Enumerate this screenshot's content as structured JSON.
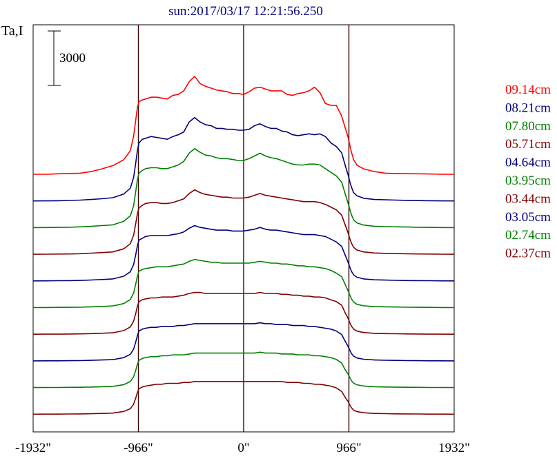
{
  "chart_data": {
    "type": "line",
    "title": "sun:2017/03/17 12:21:56.250",
    "ylabel": "Ta,I",
    "scale_bar_label": "3000",
    "xlim": [
      -1932,
      1932
    ],
    "x_ticks": [
      {
        "value": -1932,
        "label": "-1932\""
      },
      {
        "value": -966,
        "label": "-966\""
      },
      {
        "value": 0,
        "label": "0\""
      },
      {
        "value": 966,
        "label": "966\""
      },
      {
        "value": 1932,
        "label": "1932\""
      }
    ],
    "vertical_lines": [
      -966,
      0,
      966
    ],
    "legend_position": "right",
    "x": [
      -1932,
      -1800,
      -1700,
      -1600,
      -1500,
      -1400,
      -1300,
      -1200,
      -1100,
      -1040,
      -1010,
      -990,
      -975,
      -960,
      -930,
      -900,
      -850,
      -800,
      -750,
      -700,
      -650,
      -600,
      -550,
      -500,
      -450,
      -400,
      -350,
      -300,
      -250,
      -200,
      -150,
      -100,
      -50,
      0,
      50,
      100,
      150,
      200,
      250,
      300,
      350,
      400,
      450,
      500,
      550,
      600,
      650,
      700,
      750,
      800,
      850,
      900,
      930,
      960,
      975,
      990,
      1010,
      1040,
      1100,
      1200,
      1300,
      1400,
      1500,
      1600,
      1700,
      1800,
      1932
    ],
    "series": [
      {
        "name": "09.14cm",
        "color": "#ff0000",
        "baseline": 0,
        "values": [
          0,
          5,
          25,
          40,
          60,
          150,
          300,
          480,
          800,
          1300,
          2100,
          3000,
          3700,
          4000,
          4100,
          4150,
          4250,
          4250,
          4200,
          4150,
          4350,
          4400,
          4600,
          5100,
          5400,
          5000,
          4850,
          4750,
          4650,
          4600,
          4550,
          4450,
          4450,
          4400,
          4550,
          4750,
          4800,
          4700,
          4600,
          4600,
          4600,
          4400,
          4350,
          4450,
          4500,
          4600,
          4800,
          4500,
          3900,
          3800,
          3800,
          3200,
          2600,
          2000,
          1600,
          1200,
          800,
          500,
          300,
          150,
          60,
          40,
          30,
          25,
          15,
          5,
          0
        ]
      },
      {
        "name": "08.21cm",
        "color": "#000080",
        "baseline": 0,
        "values": [
          0,
          5,
          10,
          25,
          45,
          80,
          120,
          180,
          380,
          700,
          1300,
          2100,
          2800,
          3200,
          3400,
          3450,
          3550,
          3500,
          3450,
          3400,
          3550,
          3650,
          3800,
          4350,
          4600,
          4350,
          4200,
          4150,
          4000,
          4000,
          3950,
          3950,
          3900,
          3900,
          3950,
          4150,
          4250,
          4100,
          4000,
          4000,
          3850,
          3800,
          3650,
          3600,
          3650,
          3700,
          3650,
          3700,
          3550,
          3200,
          3000,
          2650,
          2000,
          1400,
          1050,
          750,
          450,
          280,
          150,
          80,
          60,
          45,
          30,
          20,
          10,
          5,
          0
        ]
      },
      {
        "name": "07.80cm",
        "color": "#008000",
        "baseline": 0,
        "values": [
          0,
          5,
          10,
          20,
          40,
          70,
          110,
          150,
          350,
          650,
          1200,
          2000,
          2650,
          3000,
          3150,
          3250,
          3300,
          3300,
          3250,
          3250,
          3350,
          3450,
          3650,
          4100,
          4350,
          4150,
          4000,
          3950,
          3850,
          3800,
          3800,
          3750,
          3700,
          3700,
          3800,
          3950,
          4100,
          3950,
          3850,
          3800,
          3700,
          3600,
          3500,
          3450,
          3450,
          3500,
          3500,
          3450,
          3250,
          3050,
          2850,
          2500,
          1900,
          1300,
          1000,
          700,
          420,
          260,
          140,
          75,
          55,
          40,
          30,
          20,
          10,
          5,
          0
        ]
      },
      {
        "name": "05.71cm",
        "color": "#800000",
        "baseline": 0,
        "values": [
          0,
          5,
          10,
          15,
          30,
          60,
          90,
          130,
          300,
          580,
          1050,
          1700,
          2250,
          2550,
          2700,
          2800,
          2850,
          2850,
          2800,
          2800,
          2850,
          2950,
          3050,
          3350,
          3550,
          3400,
          3300,
          3250,
          3200,
          3150,
          3150,
          3100,
          3100,
          3100,
          3150,
          3250,
          3350,
          3250,
          3200,
          3150,
          3100,
          3050,
          3000,
          2950,
          2900,
          2900,
          2900,
          2850,
          2750,
          2600,
          2450,
          2150,
          1650,
          1150,
          850,
          600,
          380,
          230,
          130,
          70,
          50,
          35,
          25,
          15,
          10,
          5,
          0
        ]
      },
      {
        "name": "04.64cm",
        "color": "#000080",
        "baseline": 0,
        "values": [
          0,
          5,
          10,
          15,
          25,
          50,
          75,
          110,
          260,
          500,
          900,
          1450,
          1950,
          2250,
          2350,
          2450,
          2500,
          2500,
          2500,
          2500,
          2550,
          2600,
          2700,
          2900,
          3050,
          2950,
          2900,
          2850,
          2800,
          2800,
          2800,
          2750,
          2750,
          2750,
          2800,
          2850,
          2950,
          2850,
          2800,
          2800,
          2750,
          2700,
          2650,
          2600,
          2550,
          2550,
          2550,
          2500,
          2450,
          2300,
          2150,
          1900,
          1450,
          1000,
          750,
          520,
          330,
          200,
          110,
          60,
          45,
          30,
          20,
          15,
          10,
          5,
          0
        ]
      },
      {
        "name": "03.95cm",
        "color": "#008000",
        "baseline": 0,
        "values": [
          0,
          5,
          10,
          15,
          20,
          40,
          60,
          90,
          220,
          440,
          800,
          1300,
          1750,
          2000,
          2100,
          2150,
          2200,
          2250,
          2250,
          2250,
          2300,
          2350,
          2400,
          2550,
          2650,
          2600,
          2550,
          2500,
          2500,
          2450,
          2450,
          2450,
          2450,
          2450,
          2450,
          2500,
          2550,
          2500,
          2450,
          2450,
          2400,
          2400,
          2350,
          2300,
          2300,
          2250,
          2250,
          2200,
          2150,
          2050,
          1900,
          1700,
          1300,
          900,
          680,
          470,
          300,
          180,
          100,
          55,
          40,
          30,
          20,
          15,
          10,
          5,
          0
        ]
      },
      {
        "name": "03.44cm",
        "color": "#800000",
        "baseline": 0,
        "values": [
          0,
          5,
          5,
          10,
          20,
          35,
          55,
          80,
          200,
          400,
          720,
          1150,
          1550,
          1800,
          1900,
          1950,
          2000,
          2000,
          2050,
          2050,
          2050,
          2100,
          2150,
          2250,
          2300,
          2300,
          2250,
          2250,
          2250,
          2250,
          2250,
          2250,
          2250,
          2250,
          2250,
          2250,
          2300,
          2250,
          2250,
          2250,
          2200,
          2200,
          2150,
          2150,
          2100,
          2100,
          2050,
          2050,
          2000,
          1900,
          1800,
          1600,
          1200,
          850,
          630,
          440,
          280,
          170,
          95,
          50,
          35,
          25,
          15,
          10,
          5,
          5,
          0
        ]
      },
      {
        "name": "03.05cm",
        "color": "#000080",
        "baseline": 0,
        "values": [
          0,
          5,
          5,
          10,
          15,
          30,
          50,
          70,
          180,
          360,
          650,
          1050,
          1400,
          1650,
          1750,
          1800,
          1850,
          1850,
          1900,
          1900,
          1900,
          1950,
          1950,
          2000,
          2050,
          2050,
          2050,
          2050,
          2050,
          2050,
          2050,
          2050,
          2050,
          2050,
          2050,
          2050,
          2100,
          2050,
          2050,
          2000,
          2000,
          2000,
          1950,
          1950,
          1950,
          1900,
          1900,
          1850,
          1800,
          1750,
          1650,
          1450,
          1100,
          780,
          580,
          400,
          260,
          160,
          90,
          50,
          35,
          25,
          15,
          10,
          5,
          5,
          0
        ]
      },
      {
        "name": "02.74cm",
        "color": "#008000",
        "baseline": 0,
        "values": [
          0,
          5,
          5,
          10,
          15,
          25,
          45,
          65,
          160,
          330,
          600,
          950,
          1300,
          1500,
          1600,
          1650,
          1700,
          1700,
          1750,
          1750,
          1800,
          1800,
          1800,
          1850,
          1900,
          1900,
          1900,
          1900,
          1900,
          1900,
          1900,
          1900,
          1900,
          1900,
          1900,
          1900,
          1950,
          1900,
          1900,
          1900,
          1850,
          1850,
          1850,
          1800,
          1800,
          1800,
          1750,
          1750,
          1700,
          1650,
          1550,
          1350,
          1000,
          720,
          540,
          370,
          240,
          150,
          85,
          45,
          30,
          20,
          15,
          10,
          5,
          5,
          0
        ]
      },
      {
        "name": "02.37cm",
        "color": "#800000",
        "baseline": 0,
        "values": [
          0,
          5,
          5,
          10,
          15,
          25,
          40,
          60,
          150,
          300,
          550,
          900,
          1200,
          1400,
          1500,
          1550,
          1600,
          1650,
          1650,
          1700,
          1700,
          1700,
          1750,
          1750,
          1800,
          1800,
          1800,
          1800,
          1800,
          1800,
          1800,
          1800,
          1800,
          1800,
          1800,
          1800,
          1800,
          1800,
          1800,
          1800,
          1800,
          1750,
          1750,
          1750,
          1700,
          1700,
          1650,
          1650,
          1600,
          1550,
          1450,
          1250,
          950,
          680,
          500,
          350,
          220,
          140,
          80,
          40,
          30,
          20,
          15,
          10,
          5,
          5,
          0
        ]
      }
    ]
  }
}
